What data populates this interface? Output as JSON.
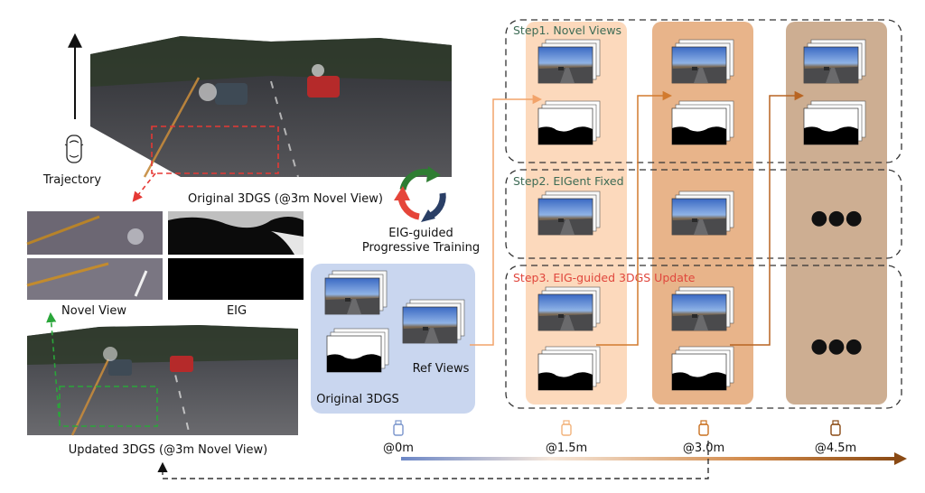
{
  "left": {
    "trajectory_label": "Trajectory",
    "original_caption": "Original 3DGS (@3m Novel View)",
    "novel_view_label": "Novel View",
    "eig_label": "EIG",
    "updated_caption": "Updated 3DGS (@3m Novel View)"
  },
  "center": {
    "cycle_label_line1": "EIG-guided",
    "cycle_label_line2": "Progressive Training",
    "original_label": "Original 3DGS",
    "ref_label": "Ref Views"
  },
  "steps": {
    "step1": "Step1. Novel Views",
    "step2": "Step2. EIGent Fixed",
    "step3": "Step3. EIG-guided 3DGS Update",
    "ellipsis": "●●●"
  },
  "timeline": {
    "ticks": [
      "@0m",
      "@1.5m",
      "@3.0m",
      "@4.5m"
    ]
  },
  "colors": {
    "stage0": "#c9d6ef",
    "stage1": "#fcd9bc",
    "stage2": "#e8b48a",
    "stage3": "#cdae92",
    "arrow_light": "#f2a36a",
    "arrow_mid": "#d27a2e",
    "arrow_dark": "#b86422",
    "step1_text": "#3d6b55",
    "step2_text": "#3d6b55",
    "step3_text": "#e0463c",
    "red_dash": "#e53935",
    "green_dash": "#2aa63a",
    "cycle_red": "#e5453a",
    "cycle_green": "#2e7d32",
    "cycle_navy": "#2a3f66"
  },
  "icons": [
    "car-top-icon",
    "camera-icon",
    "cycle-arrows-icon"
  ]
}
